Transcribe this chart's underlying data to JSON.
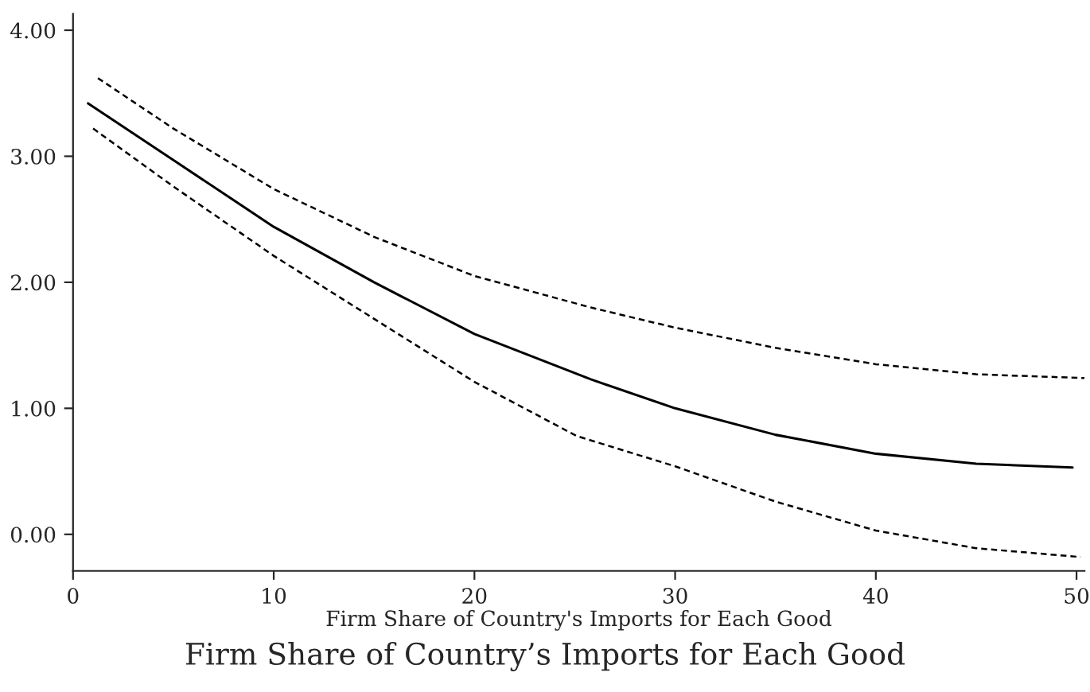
{
  "chart_data": {
    "type": "line",
    "title": "Firm Share of Country’s Imports for Each Good",
    "xlabel": "Firm Share of Country's Imports for Each Good",
    "xlim": [
      0,
      50.4
    ],
    "xticks": [
      0,
      10,
      20,
      30,
      40,
      50
    ],
    "ylim": [
      -0.29,
      4.13
    ],
    "yticks": [
      {
        "value": 0,
        "label": "0.00"
      },
      {
        "value": 1,
        "label": "1.00"
      },
      {
        "value": 2,
        "label": "2.00"
      },
      {
        "value": 3,
        "label": "3.00"
      },
      {
        "value": 4,
        "label": "4.00"
      }
    ],
    "grid": false,
    "legend": false,
    "marker": "none",
    "series": [
      {
        "color": "#000000",
        "line_style": "solid",
        "x": [
          0.75,
          5,
          10,
          15,
          20,
          25.8,
          30,
          35,
          40,
          45,
          49.8
        ],
        "values": [
          3.42,
          2.97,
          2.44,
          2.0,
          1.59,
          1.23,
          1.0,
          0.79,
          0.64,
          0.56,
          0.53
        ]
      },
      {
        "color": "#000000",
        "line_style": "dashed",
        "x": [
          1.24,
          5,
          10,
          15,
          20,
          25.8,
          30,
          35,
          40,
          45,
          50.4
        ],
        "values": [
          3.62,
          3.22,
          2.74,
          2.36,
          2.05,
          1.8,
          1.64,
          1.48,
          1.35,
          1.27,
          1.24
        ]
      },
      {
        "color": "#000000",
        "line_style": "dashed",
        "x": [
          1.0,
          5,
          10,
          15,
          20,
          25.1,
          30,
          35,
          40,
          45,
          50.2
        ],
        "values": [
          3.22,
          2.76,
          2.21,
          1.71,
          1.21,
          0.78,
          0.54,
          0.26,
          0.03,
          -0.11,
          -0.18
        ]
      }
    ]
  }
}
